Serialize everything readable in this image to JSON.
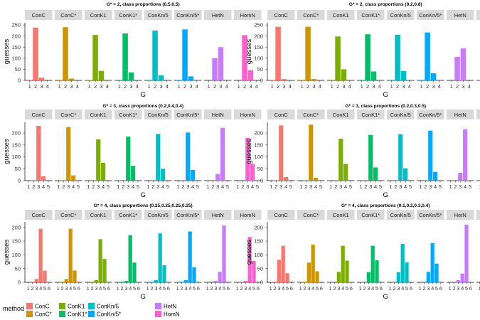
{
  "chart_data": [
    {
      "type": "bar",
      "title": "G* = 2, class proportions (0.5,0.5)",
      "xlabel": "G",
      "ylabel": "guesses",
      "ylim": [
        0,
        260
      ],
      "yticks": [
        0,
        50,
        100,
        150,
        200,
        250
      ],
      "x": [
        1,
        2,
        3,
        4
      ],
      "series": [
        {
          "name": "ConC",
          "values": [
            2,
            238,
            12,
            0
          ]
        },
        {
          "name": "ConC*",
          "values": [
            2,
            240,
            8,
            0
          ]
        },
        {
          "name": "ConK1",
          "values": [
            2,
            205,
            43,
            0
          ]
        },
        {
          "name": "ConK1*",
          "values": [
            2,
            212,
            36,
            0
          ]
        },
        {
          "name": "ConKn/5",
          "values": [
            2,
            225,
            23,
            0
          ]
        },
        {
          "name": "ConKn/5*",
          "values": [
            2,
            230,
            18,
            0
          ]
        },
        {
          "name": "HetN",
          "values": [
            0,
            100,
            150,
            0
          ]
        },
        {
          "name": "HomN",
          "values": [
            0,
            204,
            46,
            0
          ]
        }
      ]
    },
    {
      "type": "bar",
      "title": "G* = 2, class proportions (0.2,0.8)",
      "xlabel": "G",
      "ylabel": "guesses",
      "ylim": [
        0,
        260
      ],
      "yticks": [
        0,
        50,
        100,
        150,
        200,
        250
      ],
      "x": [
        1,
        2,
        3,
        4
      ],
      "series": [
        {
          "name": "ConC",
          "values": [
            2,
            242,
            6,
            0
          ]
        },
        {
          "name": "ConC*",
          "values": [
            2,
            242,
            6,
            0
          ]
        },
        {
          "name": "ConK1",
          "values": [
            2,
            198,
            50,
            0
          ]
        },
        {
          "name": "ConK1*",
          "values": [
            2,
            208,
            40,
            0
          ]
        },
        {
          "name": "ConKn/5",
          "values": [
            2,
            206,
            42,
            0
          ]
        },
        {
          "name": "ConKn/5*",
          "values": [
            2,
            216,
            32,
            0
          ]
        },
        {
          "name": "HetN",
          "values": [
            0,
            106,
            144,
            0
          ]
        },
        {
          "name": "HomN",
          "values": [
            2,
            236,
            12,
            0
          ]
        }
      ]
    },
    {
      "type": "bar",
      "title": "G* = 3, class proportions (0.2,0.4,0.4)",
      "xlabel": "G",
      "ylabel": "guesses",
      "ylim": [
        0,
        245
      ],
      "yticks": [
        0,
        50,
        100,
        150,
        200
      ],
      "x": [
        1,
        2,
        3,
        4,
        5
      ],
      "series": [
        {
          "name": "ConC",
          "values": [
            0,
            2,
            230,
            18,
            0
          ]
        },
        {
          "name": "ConC*",
          "values": [
            0,
            2,
            225,
            22,
            0
          ]
        },
        {
          "name": "ConK1",
          "values": [
            0,
            2,
            173,
            75,
            0
          ]
        },
        {
          "name": "ConK1*",
          "values": [
            0,
            2,
            185,
            62,
            0
          ]
        },
        {
          "name": "ConKn/5",
          "values": [
            0,
            2,
            196,
            50,
            0
          ]
        },
        {
          "name": "ConKn/5*",
          "values": [
            0,
            2,
            202,
            45,
            0
          ]
        },
        {
          "name": "HetN",
          "values": [
            0,
            0,
            28,
            222,
            0
          ]
        },
        {
          "name": "HomN",
          "values": [
            0,
            0,
            180,
            70,
            0
          ]
        }
      ]
    },
    {
      "type": "bar",
      "title": "G* = 3, class proportions (0.2,0.3,0.5)",
      "xlabel": "G",
      "ylabel": "guesses",
      "ylim": [
        0,
        245
      ],
      "yticks": [
        0,
        50,
        100,
        150,
        200
      ],
      "x": [
        1,
        2,
        3,
        4,
        5
      ],
      "series": [
        {
          "name": "ConC",
          "values": [
            0,
            2,
            232,
            15,
            0
          ]
        },
        {
          "name": "ConC*",
          "values": [
            0,
            2,
            235,
            12,
            0
          ]
        },
        {
          "name": "ConK1",
          "values": [
            0,
            2,
            176,
            70,
            0
          ]
        },
        {
          "name": "ConK1*",
          "values": [
            0,
            2,
            192,
            55,
            0
          ]
        },
        {
          "name": "ConKn/5",
          "values": [
            0,
            2,
            195,
            52,
            0
          ]
        },
        {
          "name": "ConKn/5*",
          "values": [
            0,
            2,
            210,
            37,
            0
          ]
        },
        {
          "name": "HetN",
          "values": [
            0,
            0,
            33,
            215,
            0
          ]
        },
        {
          "name": "HomN",
          "values": [
            0,
            0,
            190,
            58,
            0
          ]
        }
      ]
    },
    {
      "type": "bar",
      "title": "G* = 4, class proportions (0.25,0.25,0.25,0.25)",
      "xlabel": "G",
      "ylabel": "guesses",
      "ylim": [
        0,
        220
      ],
      "yticks": [
        0,
        50,
        100,
        150,
        200
      ],
      "x": [
        1,
        2,
        3,
        4,
        5,
        6
      ],
      "series": [
        {
          "name": "ConC",
          "values": [
            0,
            2,
            12,
            195,
            42,
            0
          ]
        },
        {
          "name": "ConC*",
          "values": [
            0,
            2,
            12,
            195,
            43,
            0
          ]
        },
        {
          "name": "ConK1",
          "values": [
            0,
            2,
            8,
            157,
            85,
            0
          ]
        },
        {
          "name": "ConK1*",
          "values": [
            0,
            2,
            5,
            172,
            72,
            0
          ]
        },
        {
          "name": "ConKn/5",
          "values": [
            0,
            2,
            8,
            178,
            62,
            0
          ]
        },
        {
          "name": "ConKn/5*",
          "values": [
            0,
            2,
            8,
            185,
            55,
            0
          ]
        },
        {
          "name": "HetN",
          "values": [
            0,
            0,
            5,
            38,
            207,
            0
          ]
        },
        {
          "name": "HomN",
          "values": [
            0,
            0,
            5,
            165,
            78,
            0
          ]
        }
      ]
    },
    {
      "type": "bar",
      "title": "G* = 4, class proportions (0.1,0.2,0.3,0.4)",
      "xlabel": "G",
      "ylabel": "guesses",
      "ylim": [
        0,
        220
      ],
      "yticks": [
        0,
        50,
        100,
        150,
        200
      ],
      "x": [
        1,
        2,
        3,
        4,
        5,
        6
      ],
      "series": [
        {
          "name": "ConC",
          "values": [
            0,
            2,
            82,
            133,
            33,
            0
          ]
        },
        {
          "name": "ConC*",
          "values": [
            0,
            2,
            72,
            137,
            40,
            0
          ]
        },
        {
          "name": "ConK1",
          "values": [
            0,
            0,
            38,
            133,
            79,
            0
          ]
        },
        {
          "name": "ConK1*",
          "values": [
            0,
            0,
            37,
            133,
            80,
            0
          ]
        },
        {
          "name": "ConKn/5",
          "values": [
            0,
            0,
            37,
            140,
            73,
            0
          ]
        },
        {
          "name": "ConKn/5*",
          "values": [
            0,
            0,
            38,
            143,
            68,
            0
          ]
        },
        {
          "name": "HetN",
          "values": [
            0,
            0,
            8,
            32,
            210,
            0
          ]
        },
        {
          "name": "HomN",
          "values": [
            0,
            0,
            30,
            123,
            97,
            0
          ]
        }
      ]
    }
  ],
  "legend": {
    "title": "method",
    "placement": "bottom-left",
    "items": [
      {
        "name": "ConC",
        "color": "#F8766D"
      },
      {
        "name": "ConC*",
        "color": "#CD9600"
      },
      {
        "name": "ConK1",
        "color": "#7CAE00"
      },
      {
        "name": "ConK1*",
        "color": "#00BE67"
      },
      {
        "name": "ConKn/5",
        "color": "#00BFC4"
      },
      {
        "name": "ConKn/5*",
        "color": "#00A9FF"
      },
      {
        "name": "HetN",
        "color": "#C77CFF"
      },
      {
        "name": "HomN",
        "color": "#FF61CC"
      }
    ]
  }
}
